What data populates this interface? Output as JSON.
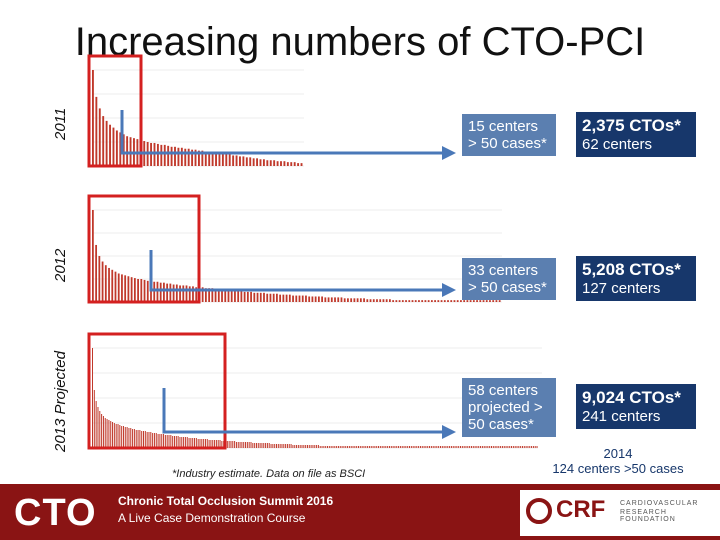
{
  "title": "Increasing numbers of CTO-PCI",
  "labels": {
    "y2011": "2011",
    "y2012": "2012",
    "y2013": "2013 Projected"
  },
  "rows": [
    {
      "centers_text": "15 centers > 50 cases*",
      "ctos": "2,375 CTOs*",
      "centers": "62 centers"
    },
    {
      "centers_text": "33 centers > 50 cases*",
      "ctos": "5,208 CTOs*",
      "centers": "127 centers"
    },
    {
      "centers_text": "58 centers projected > 50 cases*",
      "ctos": "9,024 CTOs*",
      "centers": "241 centers"
    }
  ],
  "footnote": "*Industry estimate. Data on file as BSCI",
  "note2014_line1": "2014",
  "note2014_line2": "124 centers >50 cases",
  "footer": {
    "cto": "CTO",
    "summit_line1": "Chronic Total Occlusion Summit 2016",
    "summit_line2": "A Live Case Demonstration Course",
    "crf": "CRF",
    "crf_line1": "CARDIOVASCULAR",
    "crf_line2": "RESEARCH FOUNDATION"
  },
  "chart_data": [
    {
      "type": "bar",
      "bar_color": "#c0392b",
      "highlight_color": "#d42020",
      "values": [
        100,
        72,
        60,
        52,
        47,
        43,
        40,
        37,
        35,
        33,
        31,
        30,
        29,
        28,
        27,
        26,
        25,
        24,
        24,
        23,
        22,
        22,
        21,
        20,
        20,
        19,
        19,
        18,
        18,
        17,
        17,
        16,
        16,
        15,
        15,
        14,
        14,
        13,
        13,
        12,
        12,
        11,
        11,
        10,
        10,
        9,
        9,
        8,
        8,
        7,
        7,
        6,
        6,
        6,
        5,
        5,
        5,
        4,
        4,
        4,
        3,
        3
      ]
    },
    {
      "type": "bar",
      "bar_color": "#c0392b",
      "highlight_color": "#d42020",
      "values": [
        100,
        62,
        50,
        44,
        40,
        37,
        35,
        33,
        31,
        30,
        29,
        28,
        27,
        26,
        25,
        25,
        24,
        23,
        23,
        22,
        22,
        21,
        21,
        20,
        20,
        19,
        19,
        18,
        18,
        18,
        17,
        17,
        16,
        16,
        16,
        15,
        15,
        15,
        14,
        14,
        14,
        13,
        13,
        13,
        12,
        12,
        12,
        11,
        11,
        11,
        10,
        10,
        10,
        10,
        9,
        9,
        9,
        9,
        8,
        8,
        8,
        8,
        7,
        7,
        7,
        7,
        7,
        6,
        6,
        6,
        6,
        6,
        5,
        5,
        5,
        5,
        5,
        5,
        4,
        4,
        4,
        4,
        4,
        4,
        4,
        3,
        3,
        3,
        3,
        3,
        3,
        3,
        3,
        2,
        2,
        2,
        2,
        2,
        2,
        2,
        2,
        2,
        2,
        2,
        2,
        2,
        2,
        2,
        2,
        2,
        2,
        2,
        2,
        2,
        2,
        2,
        2,
        2,
        2,
        2,
        2,
        2,
        2,
        2,
        2,
        2,
        2
      ]
    },
    {
      "type": "bar",
      "bar_color": "#c0392b",
      "highlight_color": "#d42020",
      "values": [
        100,
        58,
        47,
        41,
        37,
        34,
        32,
        30,
        29,
        28,
        27,
        26,
        25,
        24,
        24,
        23,
        22,
        22,
        21,
        21,
        20,
        20,
        19,
        19,
        18,
        18,
        18,
        17,
        17,
        17,
        16,
        16,
        16,
        15,
        15,
        15,
        14,
        14,
        14,
        14,
        13,
        13,
        13,
        13,
        12,
        12,
        12,
        12,
        11,
        11,
        11,
        11,
        11,
        10,
        10,
        10,
        10,
        10,
        9,
        9,
        9,
        9,
        9,
        9,
        8,
        8,
        8,
        8,
        8,
        8,
        8,
        7,
        7,
        7,
        7,
        7,
        7,
        7,
        7,
        6,
        6,
        6,
        6,
        6,
        6,
        6,
        6,
        6,
        5,
        5,
        5,
        5,
        5,
        5,
        5,
        5,
        5,
        5,
        4,
        4,
        4,
        4,
        4,
        4,
        4,
        4,
        4,
        4,
        4,
        4,
        3,
        3,
        3,
        3,
        3,
        3,
        3,
        3,
        3,
        3,
        3,
        3,
        3,
        3,
        3,
        2,
        2,
        2,
        2,
        2,
        2,
        2,
        2,
        2,
        2,
        2,
        2,
        2,
        2,
        2,
        2,
        2,
        2,
        2,
        2,
        2,
        2,
        2,
        2,
        2,
        2,
        2,
        2,
        2,
        2,
        2,
        2,
        2,
        2,
        2,
        2,
        2,
        2,
        2,
        2,
        2,
        2,
        2,
        2,
        2,
        2,
        2,
        2,
        2,
        2,
        2,
        2,
        2,
        2,
        2,
        2,
        2,
        2,
        2,
        2,
        2,
        2,
        2,
        2,
        2,
        2,
        2,
        2,
        2,
        2,
        2,
        2,
        2,
        2,
        2,
        2,
        2,
        2,
        2,
        2,
        2,
        2,
        2,
        2,
        2,
        2,
        2,
        2,
        2,
        2,
        2,
        2,
        2,
        2,
        2,
        2,
        2,
        2,
        2,
        2,
        2,
        2,
        2,
        2,
        2,
        2,
        2,
        2,
        2,
        2,
        2,
        2,
        2,
        2,
        2,
        2,
        2,
        2,
        2,
        2,
        2,
        2
      ]
    }
  ]
}
